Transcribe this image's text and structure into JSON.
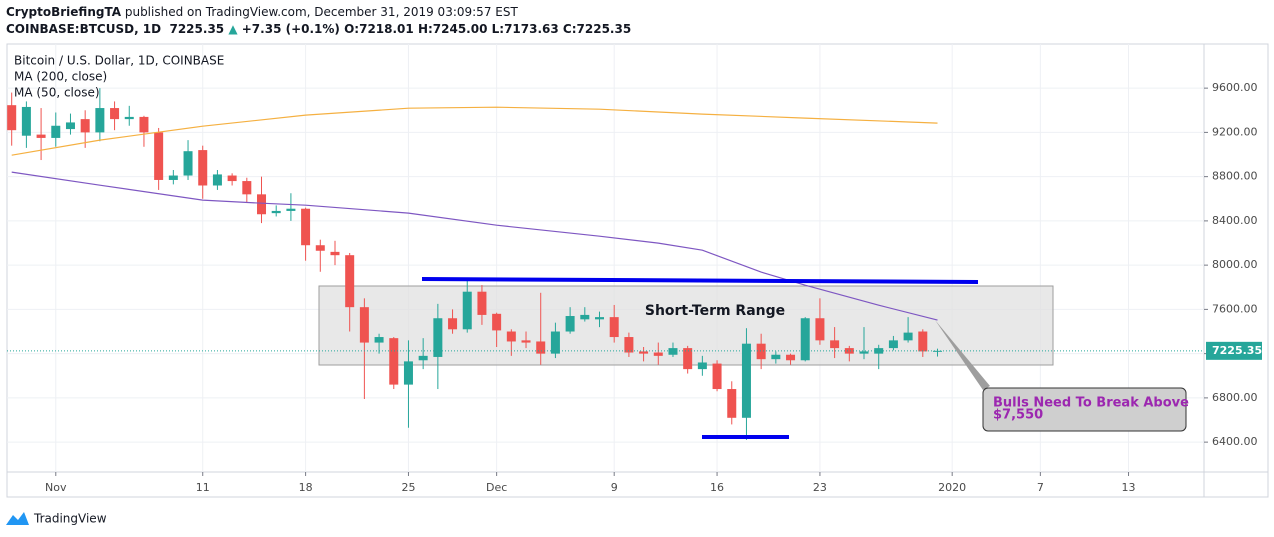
{
  "header": {
    "author": "CryptoBriefingTA",
    "published": "published on TradingView.com, December 31, 2019 03:09:57 EST",
    "symbol": "COINBASE:BTCUSD, 1D",
    "price": "7225.35",
    "arrow": "▲",
    "change": "+7.35 (+0.1%)",
    "o": "O:7218.01",
    "h": "H:7245.00",
    "l": "L:7173.63",
    "c": "C:7225.35"
  },
  "footer": {
    "brand": "TradingView"
  },
  "chart_data": {
    "type": "candlestick",
    "name": "Bitcoin / U.S. Dollar, 1D, COINBASE",
    "up_color": "#26a69a",
    "down_color": "#ef5350",
    "x": [
      "2019-10-29",
      "2019-10-30",
      "2019-10-31",
      "2019-11-01",
      "2019-11-02",
      "2019-11-03",
      "2019-11-04",
      "2019-11-05",
      "2019-11-06",
      "2019-11-07",
      "2019-11-08",
      "2019-11-09",
      "2019-11-10",
      "2019-11-11",
      "2019-11-12",
      "2019-11-13",
      "2019-11-14",
      "2019-11-15",
      "2019-11-16",
      "2019-11-17",
      "2019-11-18",
      "2019-11-19",
      "2019-11-20",
      "2019-11-21",
      "2019-11-22",
      "2019-11-23",
      "2019-11-24",
      "2019-11-25",
      "2019-11-26",
      "2019-11-27",
      "2019-11-28",
      "2019-11-29",
      "2019-11-30",
      "2019-12-01",
      "2019-12-02",
      "2019-12-03",
      "2019-12-04",
      "2019-12-05",
      "2019-12-06",
      "2019-12-07",
      "2019-12-08",
      "2019-12-09",
      "2019-12-10",
      "2019-12-11",
      "2019-12-12",
      "2019-12-13",
      "2019-12-14",
      "2019-12-15",
      "2019-12-16",
      "2019-12-17",
      "2019-12-18",
      "2019-12-19",
      "2019-12-20",
      "2019-12-21",
      "2019-12-22",
      "2019-12-23",
      "2019-12-24",
      "2019-12-25",
      "2019-12-26",
      "2019-12-27",
      "2019-12-28",
      "2019-12-29",
      "2019-12-30",
      "2019-12-31"
    ],
    "open": [
      9446,
      9170,
      9180,
      9150,
      9230,
      9320,
      9200,
      9420,
      9320,
      9340,
      9200,
      8770,
      8810,
      9040,
      8720,
      8810,
      8760,
      8640,
      8470,
      8490,
      8510,
      8180,
      8120,
      8090,
      7620,
      7300,
      7340,
      6920,
      7140,
      7170,
      7520,
      7420,
      7760,
      7560,
      7400,
      7320,
      7310,
      7200,
      7400,
      7510,
      7510,
      7530,
      7350,
      7220,
      7210,
      7190,
      7250,
      7060,
      7110,
      6880,
      6620,
      7290,
      7150,
      7190,
      7140,
      7520,
      7320,
      7250,
      7200,
      7200,
      7250,
      7320,
      7400,
      7218.01
    ],
    "high": [
      9560,
      9480,
      9420,
      9380,
      9370,
      9400,
      9600,
      9480,
      9440,
      9350,
      9240,
      8860,
      9130,
      9080,
      8860,
      8830,
      8790,
      8800,
      8540,
      8650,
      8520,
      8230,
      8220,
      8110,
      7700,
      7380,
      7350,
      7320,
      7340,
      7650,
      7600,
      7860,
      7820,
      7570,
      7420,
      7400,
      7750,
      7480,
      7620,
      7620,
      7580,
      7640,
      7390,
      7260,
      7300,
      7300,
      7270,
      7180,
      7140,
      6950,
      7430,
      7380,
      7220,
      7200,
      7530,
      7700,
      7440,
      7270,
      7440,
      7280,
      7360,
      7530,
      7420,
      7245
    ],
    "low": [
      9080,
      9060,
      8950,
      9070,
      9180,
      9060,
      9120,
      9220,
      9260,
      9070,
      8680,
      8730,
      8770,
      8600,
      8680,
      8720,
      8570,
      8380,
      8440,
      8400,
      8040,
      7940,
      8000,
      7400,
      6790,
      7200,
      6880,
      6530,
      7060,
      6880,
      7380,
      7390,
      7460,
      7260,
      7180,
      7250,
      7100,
      7160,
      7380,
      7490,
      7440,
      7300,
      7170,
      7130,
      7100,
      7170,
      7020,
      7000,
      6860,
      6560,
      6420,
      7060,
      7110,
      7100,
      7130,
      7280,
      7160,
      7130,
      7150,
      7060,
      7230,
      7300,
      7170,
      7173.63
    ],
    "close": [
      9220,
      9430,
      9150,
      9260,
      9290,
      9200,
      9420,
      9320,
      9340,
      9200,
      8770,
      8810,
      9030,
      8720,
      8820,
      8760,
      8640,
      8460,
      8490,
      8510,
      8180,
      8130,
      8090,
      7620,
      7300,
      7350,
      6920,
      7130,
      7180,
      7520,
      7420,
      7760,
      7550,
      7410,
      7310,
      7300,
      7200,
      7400,
      7540,
      7550,
      7530,
      7350,
      7210,
      7200,
      7180,
      7250,
      7060,
      7120,
      6880,
      6620,
      7290,
      7150,
      7190,
      7140,
      7520,
      7320,
      7250,
      7200,
      7220,
      7250,
      7320,
      7390,
      7220,
      7225.35
    ],
    "overlays": [
      {
        "name": "MA (200, close)",
        "color": "#f5b041",
        "x": [
          "2019-10-29",
          "2019-11-04",
          "2019-11-11",
          "2019-11-18",
          "2019-11-25",
          "2019-12-01",
          "2019-12-08",
          "2019-12-15",
          "2019-12-22",
          "2019-12-31"
        ],
        "values": [
          8994,
          9130,
          9256,
          9356,
          9419,
          9428,
          9410,
          9365,
          9329,
          9284
        ]
      },
      {
        "name": "MA (50, close)",
        "color": "#7e57c2",
        "x": [
          "2019-10-29",
          "2019-11-04",
          "2019-11-11",
          "2019-11-15",
          "2019-11-18",
          "2019-11-25",
          "2019-12-01",
          "2019-12-08",
          "2019-12-12",
          "2019-12-15",
          "2019-12-19",
          "2019-12-22",
          "2019-12-27",
          "2019-12-31"
        ],
        "values": [
          8841,
          8723,
          8588,
          8560,
          8542,
          8470,
          8361,
          8262,
          8199,
          8135,
          7937,
          7819,
          7638,
          7503
        ]
      }
    ],
    "last_price": 7225.35,
    "ylim": [
      6130,
      9990
    ],
    "yticks": [
      {
        "value": 6400,
        "label": "6400.00"
      },
      {
        "value": 6800,
        "label": "6800.00"
      },
      {
        "value": 7200,
        "label": "7200.00"
      },
      {
        "value": 7600,
        "label": "7600.00"
      },
      {
        "value": 8000,
        "label": "8000.00"
      },
      {
        "value": 8400,
        "label": "8400.00"
      },
      {
        "value": 8800,
        "label": "8800.00"
      },
      {
        "value": 9200,
        "label": "9200.00"
      },
      {
        "value": 9600,
        "label": "9600.00"
      }
    ],
    "xlim": [
      "2019-10-28",
      "2020-01-18"
    ],
    "xticks": [
      {
        "value": "2019-11-01",
        "label": "Nov"
      },
      {
        "value": "2019-11-11",
        "label": "11"
      },
      {
        "value": "2019-11-18",
        "label": "18"
      },
      {
        "value": "2019-11-25",
        "label": "25"
      },
      {
        "value": "2019-12-01",
        "label": "Dec"
      },
      {
        "value": "2019-12-09",
        "label": "9"
      },
      {
        "value": "2019-12-16",
        "label": "16"
      },
      {
        "value": "2019-12-23",
        "label": "23"
      },
      {
        "value": "2020-01-01",
        "label": "2020"
      },
      {
        "value": "2020-01-07",
        "label": "7"
      },
      {
        "value": "2020-01-13",
        "label": "13"
      }
    ],
    "grid": true,
    "annotations": {
      "range": "Short-Term Range",
      "callout_line1": "Bulls Need To Break Above",
      "callout_line2": "$7,550"
    }
  }
}
